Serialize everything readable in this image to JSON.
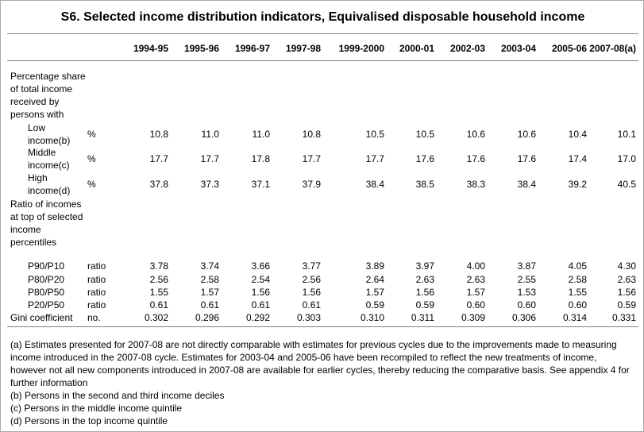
{
  "title": "S6. Selected income distribution indicators, Equivalised disposable household income",
  "columns": [
    "1994-95",
    "1995-96",
    "1996-97",
    "1997-98",
    "1999-2000",
    "2000-01",
    "2002-03",
    "2003-04",
    "2005-06",
    "2007-08(a)"
  ],
  "sections": {
    "share": "Percentage share of total income received by persons with",
    "ratio": "Ratio of incomes at top of selected income percentiles"
  },
  "rows": [
    {
      "label": "Low income(b)",
      "unit": "%",
      "values": [
        "10.8",
        "11.0",
        "11.0",
        "10.8",
        "10.5",
        "10.5",
        "10.6",
        "10.6",
        "10.4",
        "10.1"
      ]
    },
    {
      "label": "Middle income(c)",
      "unit": "%",
      "values": [
        "17.7",
        "17.7",
        "17.8",
        "17.7",
        "17.7",
        "17.6",
        "17.6",
        "17.6",
        "17.4",
        "17.0"
      ]
    },
    {
      "label": "High income(d)",
      "unit": "%",
      "values": [
        "37.8",
        "37.3",
        "37.1",
        "37.9",
        "38.4",
        "38.5",
        "38.3",
        "38.4",
        "39.2",
        "40.5"
      ]
    },
    {
      "label": "P90/P10",
      "unit": "ratio",
      "values": [
        "3.78",
        "3.74",
        "3.66",
        "3.77",
        "3.89",
        "3.97",
        "4.00",
        "3.87",
        "4.05",
        "4.30"
      ]
    },
    {
      "label": "P80/P20",
      "unit": "ratio",
      "values": [
        "2.56",
        "2.58",
        "2.54",
        "2.56",
        "2.64",
        "2.63",
        "2.63",
        "2.55",
        "2.58",
        "2.63"
      ]
    },
    {
      "label": "P80/P50",
      "unit": "ratio",
      "values": [
        "1.55",
        "1.57",
        "1.56",
        "1.56",
        "1.57",
        "1.56",
        "1.57",
        "1.53",
        "1.55",
        "1.56"
      ]
    },
    {
      "label": "P20/P50",
      "unit": "ratio",
      "values": [
        "0.61",
        "0.61",
        "0.61",
        "0.61",
        "0.59",
        "0.59",
        "0.60",
        "0.60",
        "0.60",
        "0.59"
      ]
    },
    {
      "label": "Gini coefficient",
      "unit": "no.",
      "values": [
        "0.302",
        "0.296",
        "0.292",
        "0.303",
        "0.310",
        "0.311",
        "0.309",
        "0.306",
        "0.314",
        "0.331"
      ]
    }
  ],
  "footnotes": [
    "(a) Estimates presented for 2007-08 are not directly comparable with estimates for previous cycles due to the improvements made to measuring income introduced in the 2007-08 cycle. Estimates for 2003-04 and 2005-06 have been recompiled to reflect the new treatments of income, however not all new components introduced in 2007-08 are available for earlier cycles, thereby reducing the comparative basis. See appendix 4 for further information",
    "(b) Persons in the second and third income deciles",
    "(c) Persons in the middle income quintile",
    "(d) Persons in the top income quintile"
  ]
}
